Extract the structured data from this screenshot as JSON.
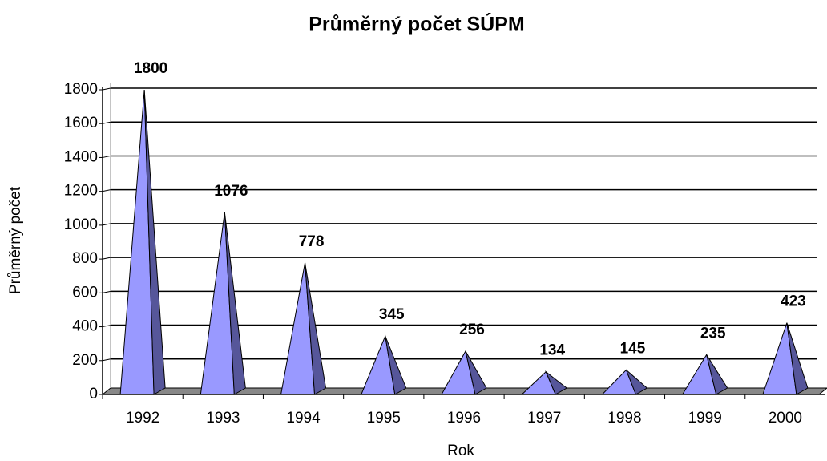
{
  "chart_data": {
    "type": "pyramid",
    "title": "Průměrný počet SÚPM",
    "x_label": "Rok",
    "y_label": "Průměrný počet",
    "categories": [
      "1992",
      "1993",
      "1994",
      "1995",
      "1996",
      "1997",
      "1998",
      "1999",
      "2000"
    ],
    "values": [
      1800,
      1076,
      778,
      345,
      256,
      134,
      145,
      235,
      423
    ],
    "color": "#9999ff",
    "side_color": "#56569a",
    "ylim": [
      0,
      1800
    ],
    "yticks": [
      0,
      200,
      400,
      600,
      800,
      1000,
      1200,
      1400,
      1600,
      1800
    ],
    "grid": true
  }
}
